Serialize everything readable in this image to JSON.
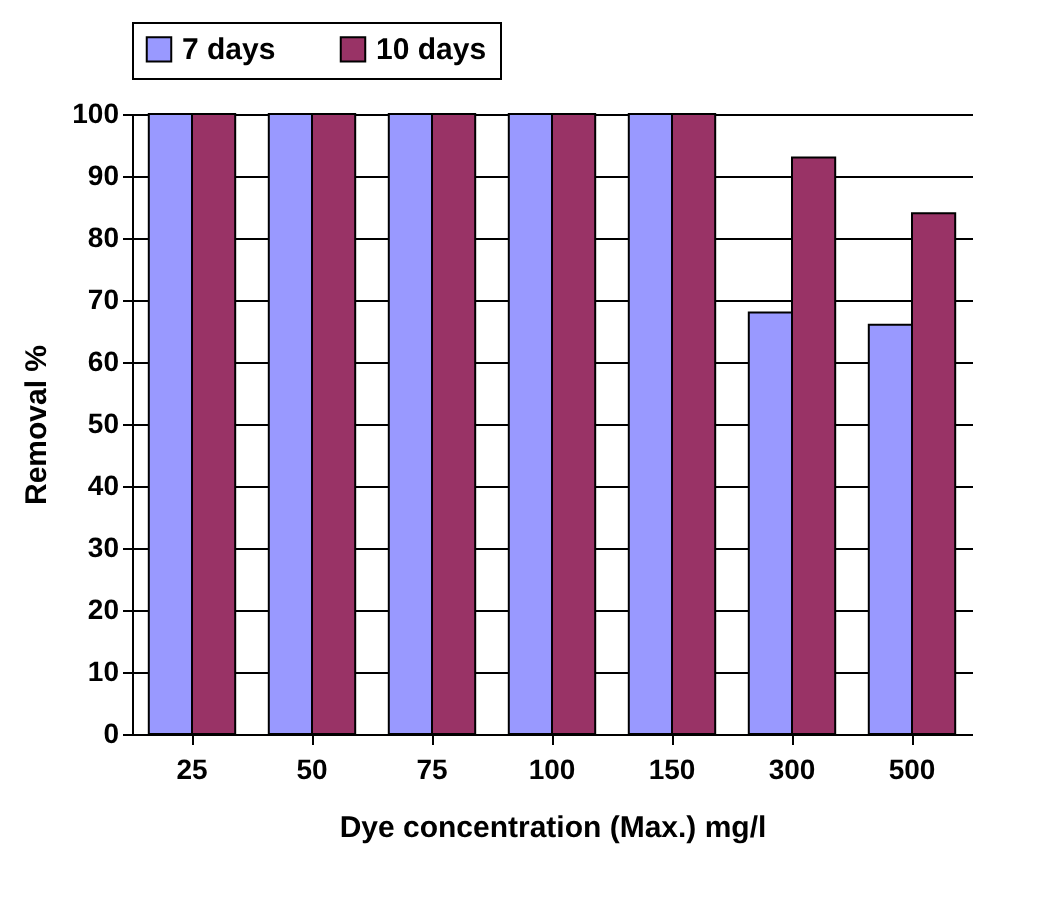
{
  "chart_data": {
    "type": "bar",
    "xlabel": "Dye concentration (Max.) mg/l",
    "ylabel": "Removal %",
    "categories": [
      "25",
      "50",
      "75",
      "100",
      "150",
      "300",
      "500"
    ],
    "series": [
      {
        "name": "7 days",
        "color": "#9999ff",
        "values": [
          100,
          100,
          100,
          100,
          100,
          68,
          66
        ]
      },
      {
        "name": "10 days",
        "color": "#993366",
        "values": [
          100,
          100,
          100,
          100,
          100,
          93,
          84
        ]
      }
    ],
    "ylim": [
      0,
      100
    ],
    "yticks": [
      0,
      10,
      20,
      30,
      40,
      50,
      60,
      70,
      80,
      90,
      100
    ],
    "grid": "y",
    "legend": "top"
  }
}
